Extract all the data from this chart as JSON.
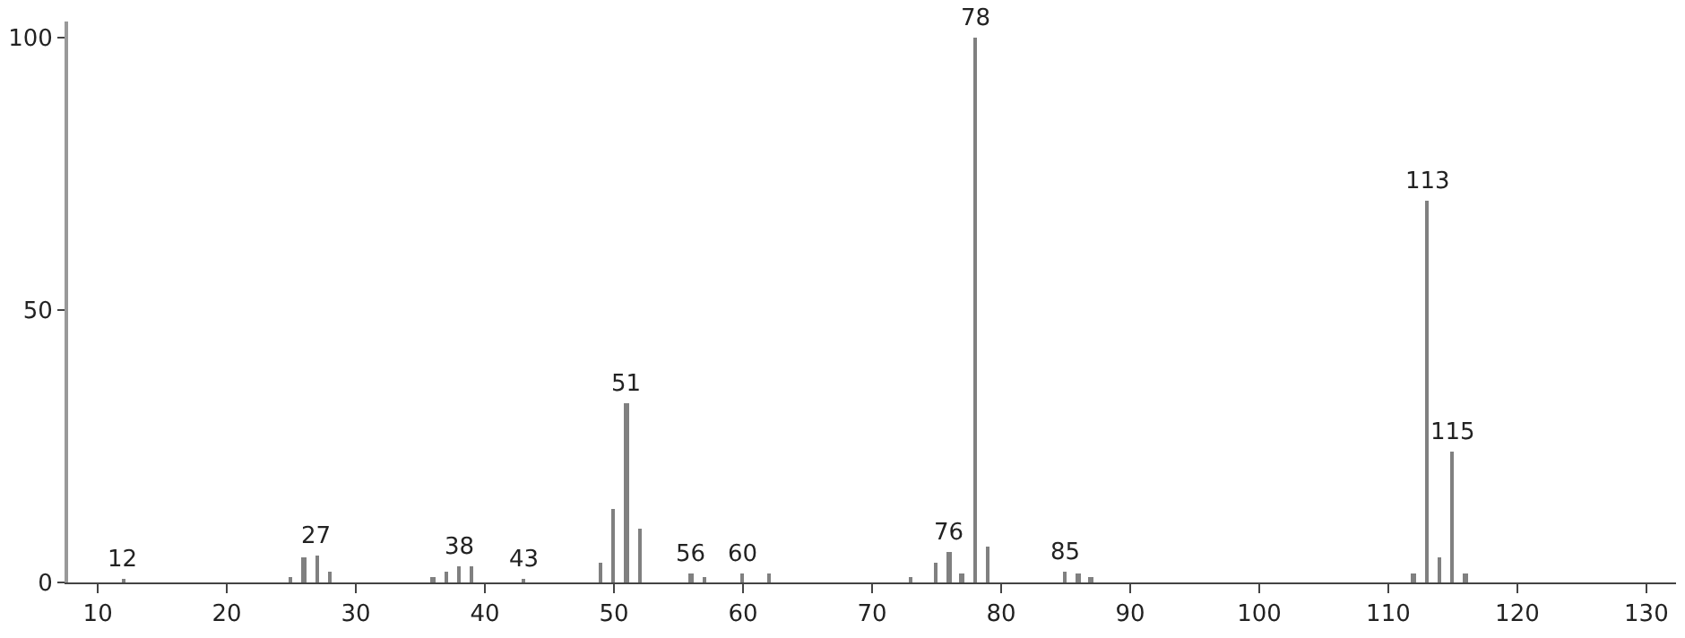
{
  "chart_data": {
    "type": "bar",
    "x": [
      12,
      25,
      26,
      27,
      28,
      36,
      37,
      38,
      39,
      43,
      49,
      50,
      51,
      52,
      56,
      57,
      60,
      62,
      73,
      75,
      76,
      77,
      78,
      79,
      85,
      86,
      87,
      112,
      113,
      114,
      115,
      116
    ],
    "values": [
      0.5,
      1,
      4.5,
      5,
      2,
      1,
      2,
      3,
      3,
      0.5,
      3.5,
      13.5,
      33,
      10,
      1.5,
      1,
      1.5,
      1.5,
      1,
      3.5,
      5.5,
      1.5,
      100,
      6.5,
      2,
      1.5,
      1,
      1.5,
      70,
      4.5,
      24,
      1.5
    ],
    "color": "#808080",
    "xlim": [
      7.7,
      132.3
    ],
    "xticks": [
      10,
      20,
      30,
      40,
      50,
      60,
      70,
      80,
      90,
      100,
      110,
      120,
      130
    ],
    "ylim": [
      0,
      103
    ],
    "yticks": [
      0,
      50,
      100
    ],
    "grid": false,
    "legend": false,
    "annotations": [
      {
        "text": "12",
        "x": 12,
        "y": 0.5
      },
      {
        "text": "27",
        "x": 27,
        "y": 5
      },
      {
        "text": "38",
        "x": 38,
        "y": 3
      },
      {
        "text": "43",
        "x": 43,
        "y": 0.5
      },
      {
        "text": "51",
        "x": 51,
        "y": 33
      },
      {
        "text": "56",
        "x": 56,
        "y": 1.5
      },
      {
        "text": "60",
        "x": 60,
        "y": 1.5
      },
      {
        "text": "76",
        "x": 76,
        "y": 5.5
      },
      {
        "text": "78",
        "x": 78,
        "y": 100
      },
      {
        "text": "85",
        "x": 85,
        "y": 2
      },
      {
        "text": "113",
        "x": 113,
        "y": 70
      },
      {
        "text": "115",
        "x": 115,
        "y": 24
      }
    ]
  }
}
